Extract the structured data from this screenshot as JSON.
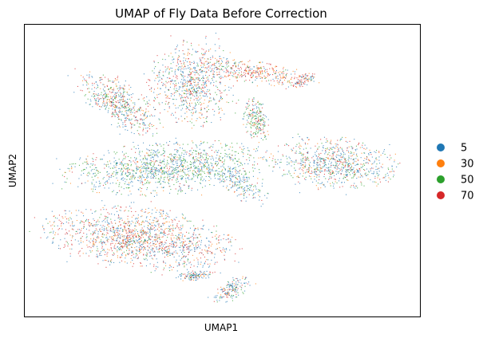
{
  "chart_data": {
    "type": "scatter",
    "title": "UMAP of Fly Data Before Correction",
    "xlabel": "UMAP1",
    "ylabel": "UMAP2",
    "ticks": "none",
    "grid": false,
    "legend": {
      "placement": "right",
      "entries": [
        {
          "name": "5",
          "color": "#1f77b4"
        },
        {
          "name": "30",
          "color": "#ff7f0e"
        },
        {
          "name": "50",
          "color": "#2ca02c"
        },
        {
          "name": "70",
          "color": "#d62728"
        }
      ]
    },
    "series": [
      {
        "name": "5",
        "color": "#1f77b4"
      },
      {
        "name": "30",
        "color": "#ff7f0e"
      },
      {
        "name": "50",
        "color": "#2ca02c"
      },
      {
        "name": "70",
        "color": "#d62728"
      }
    ]
  }
}
